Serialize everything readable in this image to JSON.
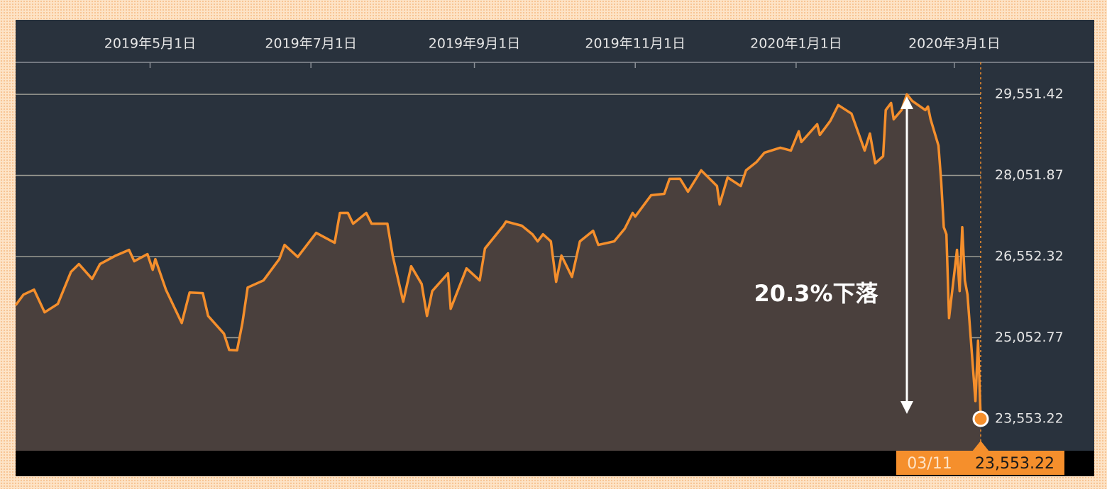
{
  "chart_data": {
    "type": "area",
    "color": "#f58f2c",
    "fill_color": "#4a403d",
    "annotation": "20.3%下落",
    "crosshair": {
      "x_label": "03/11",
      "y_label": "23,553.22"
    },
    "xlim": [
      "2019-03-11",
      "2020-03-11"
    ],
    "xticks": [
      {
        "value": "2019-05-01",
        "label": "2019年5月1日"
      },
      {
        "value": "2019-07-01",
        "label": "2019年7月1日"
      },
      {
        "value": "2019-09-01",
        "label": "2019年9月1日"
      },
      {
        "value": "2019-11-01",
        "label": "2019年11月1日"
      },
      {
        "value": "2020-01-01",
        "label": "2020年1月1日"
      },
      {
        "value": "2020-03-01",
        "label": "2020年3月1日"
      }
    ],
    "ylim": [
      22963,
      30142
    ],
    "yticks": [
      {
        "value": 23553.22,
        "label": "23,553.22"
      },
      {
        "value": 25052.77,
        "label": "25,052.77"
      },
      {
        "value": 26552.32,
        "label": "26,552.32"
      },
      {
        "value": 28051.87,
        "label": "28,051.87"
      },
      {
        "value": 29551.42,
        "label": "29,551.42"
      }
    ],
    "grid": true,
    "x": [
      "2019-03-11",
      "2019-03-14",
      "2019-03-18",
      "2019-03-22",
      "2019-03-27",
      "2019-04-01",
      "2019-04-04",
      "2019-04-09",
      "2019-04-12",
      "2019-04-18",
      "2019-04-23",
      "2019-04-25",
      "2019-04-30",
      "2019-05-02",
      "2019-05-03",
      "2019-05-07",
      "2019-05-13",
      "2019-05-16",
      "2019-05-21",
      "2019-05-23",
      "2019-05-29",
      "2019-05-31",
      "2019-06-03",
      "2019-06-05",
      "2019-06-07",
      "2019-06-13",
      "2019-06-19",
      "2019-06-21",
      "2019-06-26",
      "2019-07-03",
      "2019-07-10",
      "2019-07-12",
      "2019-07-15",
      "2019-07-17",
      "2019-07-22",
      "2019-07-24",
      "2019-07-30",
      "2019-08-01",
      "2019-08-05",
      "2019-08-08",
      "2019-08-12",
      "2019-08-14",
      "2019-08-16",
      "2019-08-22",
      "2019-08-23",
      "2019-08-29",
      "2019-09-03",
      "2019-09-05",
      "2019-09-12",
      "2019-09-13",
      "2019-09-19",
      "2019-09-23",
      "2019-09-25",
      "2019-09-27",
      "2019-09-30",
      "2019-10-02",
      "2019-10-04",
      "2019-10-08",
      "2019-10-11",
      "2019-10-16",
      "2019-10-18",
      "2019-10-24",
      "2019-10-28",
      "2019-10-31",
      "2019-11-01",
      "2019-11-07",
      "2019-11-12",
      "2019-11-14",
      "2019-11-18",
      "2019-11-21",
      "2019-11-26",
      "2019-12-02",
      "2019-12-03",
      "2019-12-06",
      "2019-12-11",
      "2019-12-13",
      "2019-12-17",
      "2019-12-20",
      "2019-12-26",
      "2019-12-30",
      "2020-01-02",
      "2020-01-03",
      "2020-01-09",
      "2020-01-10",
      "2020-01-14",
      "2020-01-17",
      "2020-01-22",
      "2020-01-27",
      "2020-01-29",
      "2020-01-31",
      "2020-02-03",
      "2020-02-04",
      "2020-02-06",
      "2020-02-07",
      "2020-02-10",
      "2020-02-12",
      "2020-02-14",
      "2020-02-19",
      "2020-02-20",
      "2020-02-21",
      "2020-02-24",
      "2020-02-25",
      "2020-02-26",
      "2020-02-27",
      "2020-02-28",
      "2020-03-02",
      "2020-03-03",
      "2020-03-04",
      "2020-03-05",
      "2020-03-06",
      "2020-03-09",
      "2020-03-10",
      "2020-03-11"
    ],
    "values": [
      25652,
      25849,
      25941,
      25521,
      25678,
      26269,
      26413,
      26138,
      26413,
      26571,
      26676,
      26466,
      26597,
      26308,
      26505,
      25941,
      25324,
      25888,
      25877,
      25455,
      25127,
      24826,
      24820,
      25324,
      25980,
      26111,
      26505,
      26767,
      26544,
      26990,
      26807,
      27358,
      27360,
      27161,
      27358,
      27161,
      27160,
      26571,
      25718,
      26374,
      26046,
      25455,
      25915,
      26243,
      25587,
      26334,
      26111,
      26702,
      27122,
      27200,
      27122,
      26964,
      26833,
      26964,
      26833,
      26085,
      26571,
      26177,
      26833,
      27030,
      26767,
      26833,
      27069,
      27358,
      27292,
      27686,
      27712,
      27988,
      27990,
      27751,
      28145,
      27856,
      27515,
      28014,
      27856,
      28145,
      28302,
      28473,
      28565,
      28512,
      28867,
      28670,
      28998,
      28801,
      29063,
      29352,
      29195,
      28512,
      28827,
      28276,
      28407,
      29260,
      29391,
      29090,
      29260,
      29551.42,
      29431,
      29260,
      29326,
      29090,
      28604,
      27948,
      27095,
      26964,
      25416,
      26676,
      25915,
      27095,
      26111,
      25849,
      23881,
      24996,
      23553.22
    ]
  }
}
